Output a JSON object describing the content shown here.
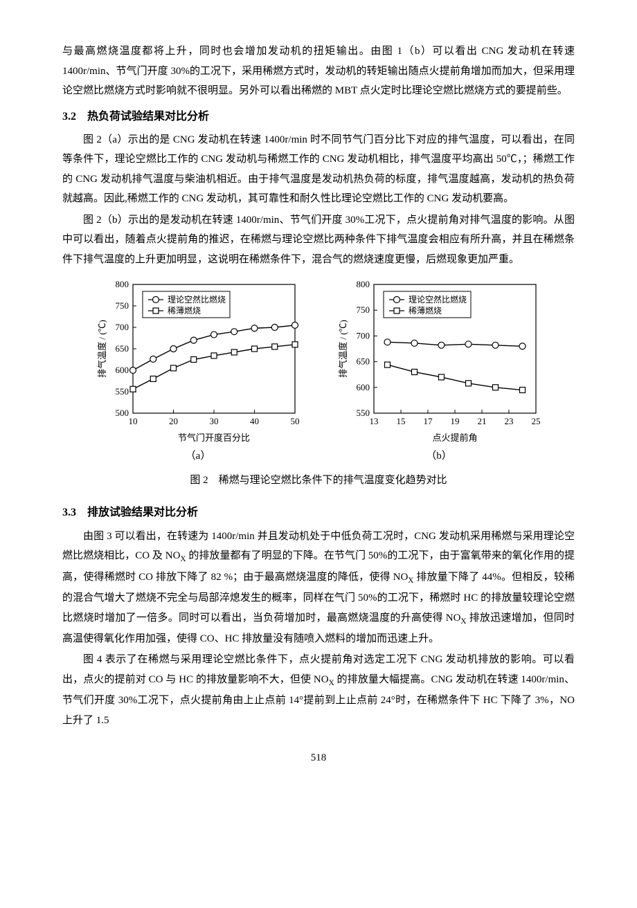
{
  "text": {
    "intro_p1": "与最高燃烧温度都将上升，同时也会增加发动机的扭矩输出。由图 1（b）可以看出 CNG 发动机在转速 1400r/min、节气门开度 30%的工况下，采用稀燃方式时，发动机的转矩输出随点火提前角增加而加大，但采用理论空燃比燃烧方式时影响就不很明显。另外可以看出稀燃的 MBT 点火定时比理论空燃比燃烧方式的要提前些。",
    "s32_head": "3.2　热负荷试验结果对比分析",
    "s32_p1": "图 2（a）示出的是 CNG 发动机在转速 1400r/min 时不同节气门百分比下对应的排气温度，可以看出，在同等条件下，理论空燃比工作的 CNG 发动机与稀燃工作的 CNG 发动机相比，排气温度平均高出 50℃，；稀燃工作的 CNG 发动机排气温度与柴油机相近。由于排气温度是发动机热负荷的标度，排气温度越高，发动机的热负荷就越高。因此,稀燃工作的 CNG 发动机，其可靠性和耐久性比理论空燃比工作的 CNG 发动机要高。",
    "s32_p2": "图 2（b）示出的是发动机在转速 1400r/min、节气们开度 30%工况下，点火提前角对排气温度的影响。从图中可以看出，随着点火提前角的推迟，在稀燃与理论空燃比两种条件下排气温度会相应有所升高，并且在稀燃条件下排气温度的上升更加明显，这说明在稀燃条件下，混合气的燃烧速度更慢，后燃现象更加严重。",
    "fig2_sub_a": "（a）",
    "fig2_sub_b": "（b）",
    "fig2_cap": "图 2　稀燃与理论空燃比条件下的排气温度变化趋势对比",
    "s33_head": "3.3　排放试验结果对比分析",
    "s33_p1_a": "由图 3 可以看出，在转速为 1400r/min 并且发动机处于中低负荷工况时，CNG 发动机采用稀燃与采用理论空燃比燃烧相比，CO 及 NO",
    "s33_p1_b": " 的排放量都有了明显的下降。在节气门 50%的工况下，由于富氧带来的氧化作用的提高，使得稀燃时 CO 排放下降了 82 %；由于最高燃烧温度的降低，使得 NO",
    "s33_p1_c": " 排放量下降了 44%。但相反，较稀的混合气增大了燃烧不完全与局部淬熄发生的概率，同样在气门 50%的工况下，稀燃时 HC 的排放量较理论空燃比燃烧时增加了一倍多。同时可以看出，当负荷增加时，最高燃烧温度的升高使得 NO",
    "s33_p1_d": " 排放迅速增加，但同时高温使得氧化作用加强，使得 CO、HC 排放量没有随喷入燃料的增加而迅速上升。",
    "s33_p2_a": "图 4 表示了在稀燃与采用理论空燃比条件下，点火提前角对选定工况下 CNG 发动机排放的影响。可以看出，点火的提前对 CO 与 HC 的排放量影响不大，但使 NO",
    "s33_p2_b": " 的排放量大幅提高。CNG 发动机在转速 1400r/min、节气们开度 30%工况下，点火提前角由上止点前 14°提前到上止点前 24°时，在稀燃条件下 HC 下降了 3%，NO 上升了 1.5",
    "sub_x": "X",
    "pagenum": "518"
  },
  "chart_a": {
    "type": "line",
    "xlabel": "节气门开度百分比",
    "ylabel": "排气温度 / (℃)",
    "xlim": [
      10,
      50
    ],
    "xtick_step": 10,
    "ylim": [
      500,
      800
    ],
    "ytick_step": 50,
    "legend": [
      "理论空然比燃烧",
      "稀薄燃烧"
    ],
    "legend_markers": [
      "circle",
      "square"
    ],
    "series": [
      {
        "marker": "circle",
        "x": [
          10,
          15,
          20,
          25,
          30,
          35,
          40,
          45,
          50
        ],
        "y": [
          600,
          626,
          650,
          670,
          683,
          690,
          698,
          700,
          705
        ]
      },
      {
        "marker": "square",
        "x": [
          10,
          15,
          20,
          25,
          30,
          35,
          40,
          45,
          50
        ],
        "y": [
          556,
          580,
          605,
          625,
          634,
          642,
          650,
          655,
          660
        ]
      }
    ],
    "stroke": "#000000",
    "tick_fontsize": 13,
    "label_fontsize": 13,
    "background": "#ffffff",
    "grid_color": "#000000"
  },
  "chart_b": {
    "type": "line",
    "xlabel": "点火提前角",
    "ylabel": "排气温度 / (℃)",
    "xlim": [
      13,
      25
    ],
    "xtick_step": 2,
    "ylim": [
      550,
      800
    ],
    "ytick_step": 50,
    "legend": [
      "理论空然比燃烧",
      "稀薄燃烧"
    ],
    "legend_markers": [
      "circle",
      "square"
    ],
    "series": [
      {
        "marker": "circle",
        "x": [
          14,
          16,
          18,
          20,
          22,
          24
        ],
        "y": [
          688,
          686,
          682,
          684,
          682,
          680
        ]
      },
      {
        "marker": "square",
        "x": [
          14,
          16,
          18,
          20,
          22,
          24
        ],
        "y": [
          644,
          630,
          620,
          608,
          600,
          595
        ]
      }
    ],
    "stroke": "#000000",
    "tick_fontsize": 13,
    "label_fontsize": 13,
    "background": "#ffffff",
    "grid_color": "#000000"
  }
}
